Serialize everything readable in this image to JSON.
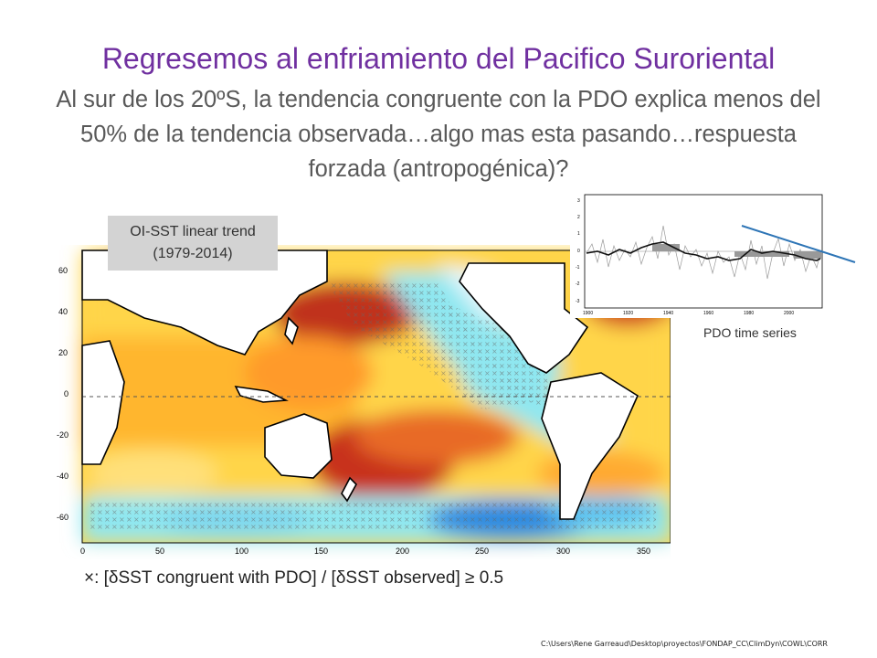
{
  "slide": {
    "title": "Regresemos  al enfriamiento del Pacifico Suroriental",
    "subtitle": "Al sur de los 20ºS, la tendencia congruente con la PDO explica menos del 50% de la tendencia observada…algo mas esta pasando…respuesta forzada (antropogénica)?",
    "map_label_line1": "OI-SST linear trend",
    "map_label_line2": "(1979-2014)",
    "pdo_caption": "PDO time series",
    "formula": "×: [δSST congruent with PDO] / [δSST observed] ≥ 0.5",
    "footer_path": "C:\\Users\\Rene Garreaud\\Desktop\\proyectos\\FONDAP_CC\\ClimDyn\\COWL\\CORR"
  },
  "map_axes": {
    "y_ticks": [
      "60",
      "40",
      "20",
      "0",
      "-20",
      "-40",
      "-60"
    ],
    "x_ticks": [
      "0",
      "50",
      "100",
      "150",
      "200",
      "250",
      "300",
      "350"
    ]
  },
  "pdo_axes": {
    "y_ticks": [
      "3",
      "2",
      "1",
      "0",
      "-1",
      "-2",
      "-3"
    ],
    "x_ticks": [
      "1900",
      "1920",
      "1940",
      "1960",
      "1980",
      "2000"
    ]
  },
  "colors": {
    "title": "#7030a0",
    "subtitle": "#595959",
    "trend_line": "#2e75b6"
  }
}
